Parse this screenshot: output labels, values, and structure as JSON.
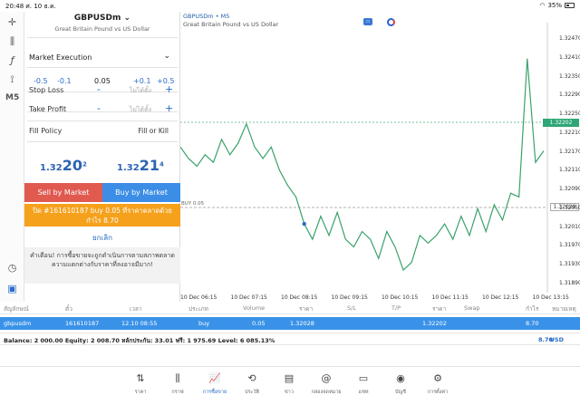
{
  "status": {
    "time": "20:48",
    "date": "ศ. 10 ธ.ค.",
    "battery": "35%"
  },
  "order": {
    "symbol": "GBPUSDm",
    "description": "Great Britain Pound vs US Dollar",
    "type": "Market Execution",
    "volume": {
      "m05": "-0.5",
      "m01": "-0.1",
      "value": "0.05",
      "p01": "+0.1",
      "p05": "+0.5"
    },
    "stop_loss": {
      "label": "Stop Loss",
      "placeholder": "ไม่ได้ตั้ง",
      "minus": "-",
      "plus": "+"
    },
    "take_profit": {
      "label": "Take Profit",
      "placeholder": "ไม่ได้ตั้ง",
      "minus": "-",
      "plus": "+"
    },
    "fill_policy": {
      "label": "Fill Policy",
      "value": "Fill or Kill"
    },
    "bid": {
      "a": "1.32",
      "b": "20",
      "c": "2"
    },
    "ask": {
      "a": "1.32",
      "b": "21",
      "c": "4"
    },
    "sell_label": "Sell by Market",
    "buy_label": "Buy by Market",
    "close_line1": "ปิด #161610187 buy 0.05 ที่ราคาตลาดด้วย",
    "close_line2": "กำไร 8.70",
    "cancel": "ยกเลิก",
    "warning": "คำเตือน! การซื้อขายจะถูกดำเนินการตามสภาพตลาด ความแตกต่างกับราคาที่ลงอาจมีมาก!"
  },
  "chart": {
    "title": "GBPUSDm • M5",
    "subtitle": "Great Britain Pound vs US Dollar",
    "position_label": "BUY 0.05",
    "bid_tag": "1.32202",
    "open_tag": "1.32028",
    "chart_data": {
      "type": "line",
      "title": "GBPUSDm • M5",
      "subtitle": "Great Britain Pound vs US Dollar",
      "y_ticks": [
        "1.32470",
        "1.32410",
        "1.32350",
        "1.32290",
        "1.32250",
        "1.32210",
        "1.32170",
        "1.32110",
        "1.32090",
        "1.32050",
        "1.32010",
        "1.31970",
        "1.31930",
        "1.31890"
      ],
      "x_ticks": [
        "10 Dec 06:15",
        "10 Dec 07:15",
        "10 Dec 08:15",
        "10 Dec 09:15",
        "10 Dec 10:15",
        "10 Dec 11:15",
        "10 Dec 12:15",
        "10 Dec 13:15"
      ],
      "ylim": [
        1.3185,
        1.3251
      ],
      "series": [
        {
          "values": [
            1.3221,
            1.3218,
            1.3216,
            1.3219,
            1.3217,
            1.3223,
            1.3219,
            1.3222,
            1.3227,
            1.3221,
            1.3218,
            1.3221,
            1.3215,
            1.3211,
            1.3208,
            1.3201,
            1.3197,
            1.3203,
            1.3198,
            1.3204,
            1.3197,
            1.3195,
            1.3199,
            1.3197,
            1.3192,
            1.3199,
            1.3195,
            1.3189,
            1.3191,
            1.3198,
            1.3196,
            1.3198,
            1.3201,
            1.3197,
            1.3203,
            1.3198,
            1.3205,
            1.3199,
            1.3206,
            1.3202,
            1.3209,
            1.3208,
            1.3244,
            1.3217,
            1.322
          ]
        }
      ],
      "bid_line": 1.32202,
      "open_line": 1.32028,
      "entry_point": 1.32028
    }
  },
  "table": {
    "headers": [
      "สัญลักษณ์",
      "ตั๋ว",
      "เวลา",
      "ประเภท",
      "Volume",
      "ราคา",
      "S/L",
      "T/P",
      "ราคา",
      "Swap",
      "กำไร",
      "หมายเหตุ"
    ],
    "row": [
      "gbpusdm",
      "161610187",
      "12.10 08:55",
      "buy",
      "0.05",
      "1.32028",
      "",
      "",
      "1.32202",
      "",
      "8.70",
      ""
    ],
    "balance": "Balance: 2 000.00 Equity: 2 008.70 หลักประกัน: 33.01 ฟรี: 1 975.69 Level: 6 085.13%",
    "total": "8.70",
    "currency": "USD"
  },
  "nav": [
    {
      "label": "ราคา",
      "glyph": "⇅"
    },
    {
      "label": "กราฟ",
      "glyph": "⫼"
    },
    {
      "label": "การซื้อขาย",
      "glyph": "📈"
    },
    {
      "label": "ประวัติ",
      "glyph": "⟲"
    },
    {
      "label": "ข่าว",
      "glyph": "▤"
    },
    {
      "label": "กล่องจดหมาย",
      "glyph": "@"
    },
    {
      "label": "แชท",
      "glyph": "▭"
    },
    {
      "label": "บัญชี",
      "glyph": "◉"
    },
    {
      "label": "การตั้งค่า",
      "glyph": "⚙"
    }
  ],
  "toolbar": {
    "crosshair": "✛",
    "candles": "⫼",
    "fx": "ƒ",
    "shapes": "⟟",
    "timeframe": "M5",
    "clock": "◷",
    "doc": "▣"
  }
}
